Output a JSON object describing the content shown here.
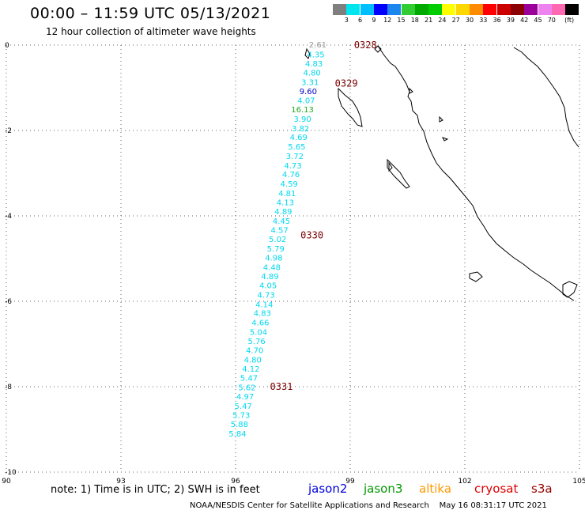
{
  "title": "00:00 – 11:59 UTC 05/13/2021",
  "subtitle": "12 hour collection of altimeter wave heights",
  "legend": {
    "unit": "(ft)",
    "colors": [
      "#7f7f7f",
      "#00e5ee",
      "#00bfff",
      "#0000ff",
      "#1c86ee",
      "#32cd32",
      "#00aa00",
      "#00cd00",
      "#ffff00",
      "#ffd700",
      "#ff8c00",
      "#ff0000",
      "#cd0000",
      "#8b0000",
      "#9a009a",
      "#ee82ee",
      "#ff69b4",
      "#000000"
    ],
    "labels": [
      "3",
      "6",
      "9",
      "12",
      "15",
      "18",
      "21",
      "24",
      "27",
      "30",
      "33",
      "36",
      "39",
      "42",
      "45",
      "70"
    ]
  },
  "axes": {
    "x_ticks": [
      "90",
      "93",
      "96",
      "99",
      "102",
      "105"
    ],
    "y_ticks": [
      "0",
      "-2",
      "-4",
      "-6",
      "-8",
      "-10"
    ]
  },
  "times": [
    {
      "label": "0328",
      "lon": 99.1,
      "lat": 0.0
    },
    {
      "label": "0329",
      "lon": 98.6,
      "lat": -0.9
    },
    {
      "label": "0330",
      "lon": 97.7,
      "lat": -4.45
    },
    {
      "label": "0331",
      "lon": 96.9,
      "lat": -8.0
    }
  ],
  "wave_heights": [
    {
      "v": "2.61",
      "lon": 98.15,
      "lat": 0.0,
      "color": "#999999"
    },
    {
      "v": "4.35",
      "lon": 98.1,
      "lat": -0.23,
      "color": "#00d8ee"
    },
    {
      "v": "4.83",
      "lon": 98.05,
      "lat": -0.44,
      "color": "#00d8ee"
    },
    {
      "v": "4.80",
      "lon": 98.0,
      "lat": -0.66,
      "color": "#00d8ee"
    },
    {
      "v": "3.31",
      "lon": 97.95,
      "lat": -0.88,
      "color": "#00d8ee"
    },
    {
      "v": "9.60",
      "lon": 97.9,
      "lat": -1.09,
      "color": "#0000cc"
    },
    {
      "v": "4.07",
      "lon": 97.85,
      "lat": -1.31,
      "color": "#00d8ee"
    },
    {
      "v": "16.13",
      "lon": 97.75,
      "lat": -1.52,
      "color": "#22aa22"
    },
    {
      "v": "3.90",
      "lon": 97.75,
      "lat": -1.74,
      "color": "#00d8ee"
    },
    {
      "v": "3.82",
      "lon": 97.7,
      "lat": -1.96,
      "color": "#00d8ee"
    },
    {
      "v": "4.69",
      "lon": 97.65,
      "lat": -2.17,
      "color": "#00d8ee"
    },
    {
      "v": "5.65",
      "lon": 97.6,
      "lat": -2.39,
      "color": "#00d8ee"
    },
    {
      "v": "3.72",
      "lon": 97.55,
      "lat": -2.61,
      "color": "#00d8ee"
    },
    {
      "v": "4.73",
      "lon": 97.5,
      "lat": -2.83,
      "color": "#00d8ee"
    },
    {
      "v": "4.76",
      "lon": 97.45,
      "lat": -3.04,
      "color": "#00d8ee"
    },
    {
      "v": "4.59",
      "lon": 97.4,
      "lat": -3.26,
      "color": "#00d8ee"
    },
    {
      "v": "4.81",
      "lon": 97.35,
      "lat": -3.48,
      "color": "#00d8ee"
    },
    {
      "v": "4.13",
      "lon": 97.3,
      "lat": -3.69,
      "color": "#00d8ee"
    },
    {
      "v": "4.89",
      "lon": 97.25,
      "lat": -3.91,
      "color": "#00d8ee"
    },
    {
      "v": "4.45",
      "lon": 97.2,
      "lat": -4.13,
      "color": "#00d8ee"
    },
    {
      "v": "4.57",
      "lon": 97.15,
      "lat": -4.34,
      "color": "#00d8ee"
    },
    {
      "v": "5.02",
      "lon": 97.1,
      "lat": -4.56,
      "color": "#00d8ee"
    },
    {
      "v": "5.79",
      "lon": 97.05,
      "lat": -4.78,
      "color": "#00d8ee"
    },
    {
      "v": "4.98",
      "lon": 97.0,
      "lat": -4.99,
      "color": "#00d8ee"
    },
    {
      "v": "4.48",
      "lon": 96.95,
      "lat": -5.21,
      "color": "#00d8ee"
    },
    {
      "v": "4.89",
      "lon": 96.9,
      "lat": -5.43,
      "color": "#00d8ee"
    },
    {
      "v": "4.05",
      "lon": 96.85,
      "lat": -5.64,
      "color": "#00d8ee"
    },
    {
      "v": "4.73",
      "lon": 96.8,
      "lat": -5.86,
      "color": "#00d8ee"
    },
    {
      "v": "4.14",
      "lon": 96.75,
      "lat": -6.08,
      "color": "#00d8ee"
    },
    {
      "v": "4.83",
      "lon": 96.7,
      "lat": -6.29,
      "color": "#00d8ee"
    },
    {
      "v": "4.66",
      "lon": 96.65,
      "lat": -6.51,
      "color": "#00d8ee"
    },
    {
      "v": "5.04",
      "lon": 96.6,
      "lat": -6.73,
      "color": "#00d8ee"
    },
    {
      "v": "5.76",
      "lon": 96.55,
      "lat": -6.94,
      "color": "#00d8ee"
    },
    {
      "v": "4.70",
      "lon": 96.5,
      "lat": -7.16,
      "color": "#00d8ee"
    },
    {
      "v": "4.80",
      "lon": 96.45,
      "lat": -7.38,
      "color": "#00d8ee"
    },
    {
      "v": "4.12",
      "lon": 96.4,
      "lat": -7.59,
      "color": "#00d8ee"
    },
    {
      "v": "5.47",
      "lon": 96.35,
      "lat": -7.81,
      "color": "#00d8ee"
    },
    {
      "v": "5.62",
      "lon": 96.3,
      "lat": -8.03,
      "color": "#00d8ee"
    },
    {
      "v": "4.97",
      "lon": 96.25,
      "lat": -8.24,
      "color": "#00d8ee"
    },
    {
      "v": "5.47",
      "lon": 96.2,
      "lat": -8.46,
      "color": "#00d8ee"
    },
    {
      "v": "5.73",
      "lon": 96.15,
      "lat": -8.68,
      "color": "#00d8ee"
    },
    {
      "v": "5.88",
      "lon": 96.1,
      "lat": -8.89,
      "color": "#00d8ee"
    },
    {
      "v": "5.84",
      "lon": 96.05,
      "lat": -9.11,
      "color": "#00d8ee"
    }
  ],
  "note": "note: 1) Time is in UTC; 2) SWH is in feet",
  "satellites": [
    {
      "name": "jason2",
      "color": "#0000dd"
    },
    {
      "name": "jason3",
      "color": "#009900"
    },
    {
      "name": "altika",
      "color": "#ff9900"
    },
    {
      "name": "cryosat",
      "color": "#dd0000"
    },
    {
      "name": "s3a",
      "color": "#990000"
    }
  ],
  "footer": "NOAA/NESDIS Center for Satellite Applications and Research    May 16 08:31:17 UTC 2021"
}
